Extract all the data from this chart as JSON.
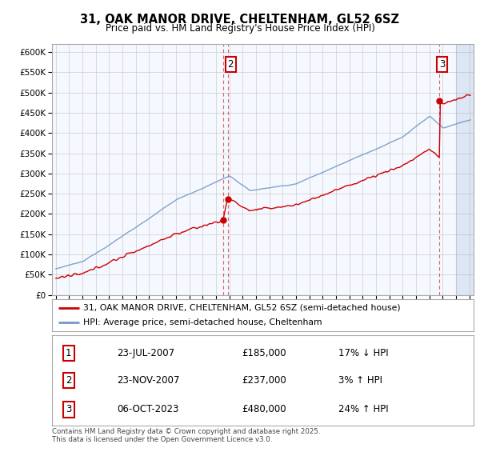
{
  "title1": "31, OAK MANOR DRIVE, CHELTENHAM, GL52 6SZ",
  "title2": "Price paid vs. HM Land Registry's House Price Index (HPI)",
  "legend1": "31, OAK MANOR DRIVE, CHELTENHAM, GL52 6SZ (semi-detached house)",
  "legend2": "HPI: Average price, semi-detached house, Cheltenham",
  "sale1_date": "23-JUL-2007",
  "sale1_price": 185000,
  "sale1_label": "17% ↓ HPI",
  "sale2_date": "23-NOV-2007",
  "sale2_price": 237000,
  "sale2_label": "3% ↑ HPI",
  "sale3_date": "06-OCT-2023",
  "sale3_price": 480000,
  "sale3_label": "24% ↑ HPI",
  "footer1": "Contains HM Land Registry data © Crown copyright and database right 2025.",
  "footer2": "This data is licensed under the Open Government Licence v3.0.",
  "hpi_color": "#7399c6",
  "price_color": "#cc0000",
  "background_color": "#ffffff",
  "grid_color": "#cccccc",
  "chart_bg": "#f5f8ff",
  "ylim_min": 0,
  "ylim_max": 620000,
  "xlim_min": 1994.7,
  "xlim_max": 2026.3,
  "hatch_start": 2025.0,
  "t1": 2007.54,
  "t2": 2007.88,
  "t3": 2023.75
}
